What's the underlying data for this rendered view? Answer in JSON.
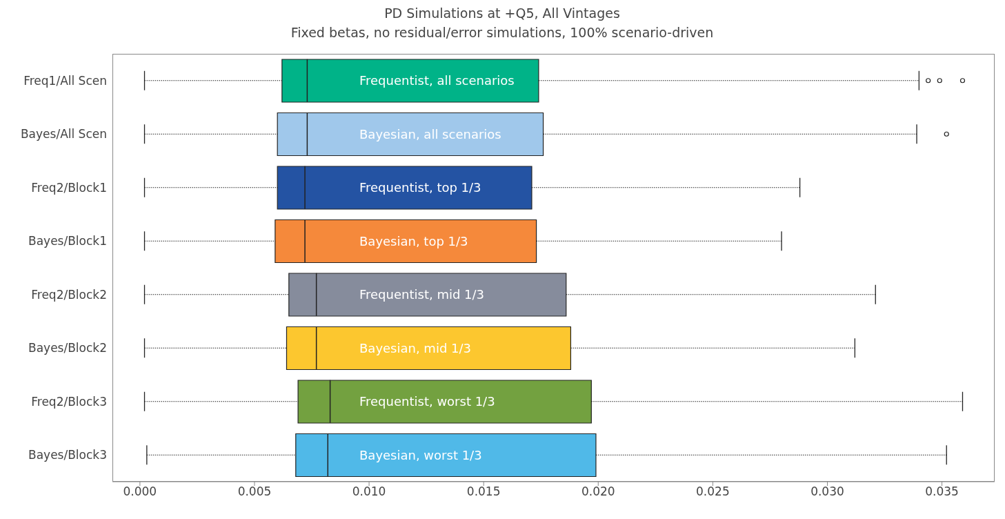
{
  "chart_data": {
    "type": "box",
    "orientation": "horizontal",
    "title": "PD Simulations at +Q5, All Vintages",
    "subtitle": "Fixed betas, no residual/error simulations, 100% scenario-driven",
    "categories": [
      "Freq1/All Scen",
      "Bayes/All Scen",
      "Freq2/Block1",
      "Bayes/Block1",
      "Freq2/Block2",
      "Bayes/Block2",
      "Freq2/Block3",
      "Bayes/Block3"
    ],
    "colors": [
      "#00b388",
      "#a0c8eb",
      "#2453a3",
      "#f5893b",
      "#868c9c",
      "#fcc72f",
      "#73a140",
      "#50b9e8"
    ],
    "boxes": [
      {
        "low": 0.0002,
        "q1": 0.0062,
        "median": 0.0073,
        "q3": 0.0174,
        "high": 0.034,
        "outliers": [
          0.0344,
          0.0349,
          0.0359
        ]
      },
      {
        "low": 0.0002,
        "q1": 0.006,
        "median": 0.0073,
        "q3": 0.0176,
        "high": 0.0339,
        "outliers": [
          0.0352
        ]
      },
      {
        "low": 0.0002,
        "q1": 0.006,
        "median": 0.0072,
        "q3": 0.0171,
        "high": 0.0288
      },
      {
        "low": 0.0002,
        "q1": 0.0059,
        "median": 0.0072,
        "q3": 0.0173,
        "high": 0.028
      },
      {
        "low": 0.0002,
        "q1": 0.0065,
        "median": 0.0077,
        "q3": 0.0186,
        "high": 0.0321
      },
      {
        "low": 0.0002,
        "q1": 0.0064,
        "median": 0.0077,
        "q3": 0.0188,
        "high": 0.0312
      },
      {
        "low": 0.0002,
        "q1": 0.0069,
        "median": 0.0083,
        "q3": 0.0197,
        "high": 0.0359
      },
      {
        "low": 0.0003,
        "q1": 0.0068,
        "median": 0.0082,
        "q3": 0.0199,
        "high": 0.0352
      }
    ],
    "annotations": [
      "Frequentist, all scenarios",
      "Bayesian, all scenarios",
      "Frequentist, top 1/3",
      "Bayesian, top 1/3",
      "Frequentist, mid 1/3",
      "Bayesian, mid 1/3",
      "Frequentist, worst 1/3",
      "Bayesian, worst 1/3"
    ],
    "xlim": [
      -0.0012,
      0.0373
    ],
    "xticks": [
      {
        "value": 0,
        "label": "0.000"
      },
      {
        "value": 0.005,
        "label": "0.005"
      },
      {
        "value": 0.01,
        "label": "0.010"
      },
      {
        "value": 0.015,
        "label": "0.015"
      },
      {
        "value": 0.02,
        "label": "0.020"
      },
      {
        "value": 0.025,
        "label": "0.025"
      },
      {
        "value": 0.03,
        "label": "0.030"
      },
      {
        "value": 0.035,
        "label": "0.035"
      }
    ],
    "grid": false,
    "legend": false
  }
}
